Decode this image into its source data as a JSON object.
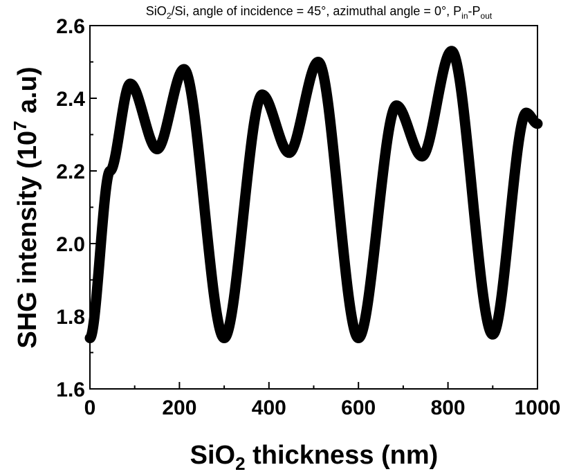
{
  "chart_data": {
    "type": "line",
    "title": {
      "parts": [
        "SiO",
        "2",
        "/Si, angle of incidence = 45°, azimuthal angle = 0°, P",
        "in",
        "-P",
        "out"
      ]
    },
    "xlabel": {
      "main": "SiO",
      "sub": "2",
      "rest": " thickness (nm)"
    },
    "ylabel": {
      "main": "SHG intensity (10",
      "sup": "7",
      "rest": " a.u)"
    },
    "xlim": [
      0,
      1000
    ],
    "ylim": [
      1.6,
      2.6
    ],
    "xticks": [
      0,
      200,
      400,
      600,
      800,
      1000
    ],
    "xtick_labels": [
      "0",
      "200",
      "400",
      "600",
      "800",
      "1000"
    ],
    "yticks": [
      1.6,
      1.8,
      2.0,
      2.2,
      2.4,
      2.6
    ],
    "ytick_labels": [
      "1.6",
      "1.8",
      "2.0",
      "2.2",
      "2.4",
      "2.6"
    ],
    "grid": false,
    "legend": "none",
    "series": [
      {
        "color": "#000000",
        "x": [
          0,
          45,
          90,
          150,
          210,
          300,
          385,
          445,
          510,
          600,
          685,
          742,
          808,
          900,
          975,
          1000
        ],
        "y": [
          1.74,
          2.2,
          2.44,
          2.26,
          2.48,
          1.74,
          2.41,
          2.25,
          2.5,
          1.74,
          2.38,
          2.24,
          2.53,
          1.75,
          2.36,
          2.33
        ]
      }
    ]
  }
}
